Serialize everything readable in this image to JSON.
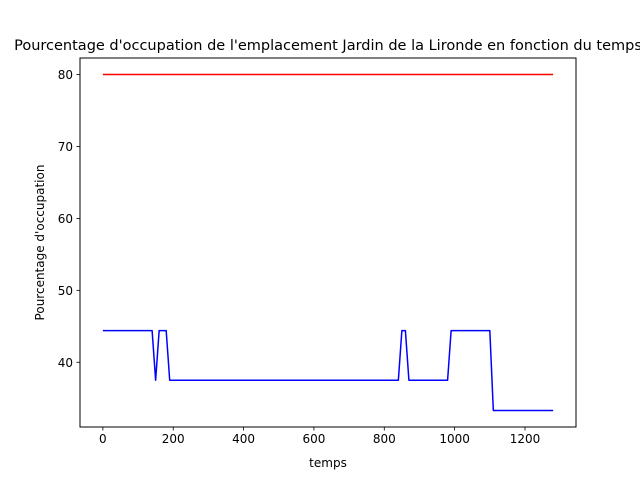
{
  "chart_data": {
    "type": "line",
    "title": "Pourcentage d'occupation de l'emplacement Jardin de la Lironde en fonction du temps",
    "xlabel": "temps",
    "ylabel": "Pourcentage d'occupation",
    "xlim": [
      -65,
      1345
    ],
    "ylim": [
      31.0,
      82.3
    ],
    "xticks": [
      0,
      200,
      400,
      600,
      800,
      1000,
      1200
    ],
    "yticks": [
      40,
      50,
      60,
      70,
      80
    ],
    "grid": false,
    "legend": "none",
    "series": [
      {
        "color": "#ff0000",
        "x": [
          0,
          1280
        ],
        "y": [
          80,
          80
        ]
      },
      {
        "color": "#0000ff",
        "x": [
          0,
          140,
          150,
          160,
          180,
          190,
          840,
          850,
          860,
          870,
          980,
          990,
          1100,
          1110,
          1280
        ],
        "y": [
          44.4,
          44.4,
          37.5,
          44.4,
          44.4,
          37.5,
          37.5,
          44.4,
          44.4,
          37.5,
          37.5,
          44.4,
          44.4,
          33.3,
          33.3
        ]
      }
    ]
  }
}
